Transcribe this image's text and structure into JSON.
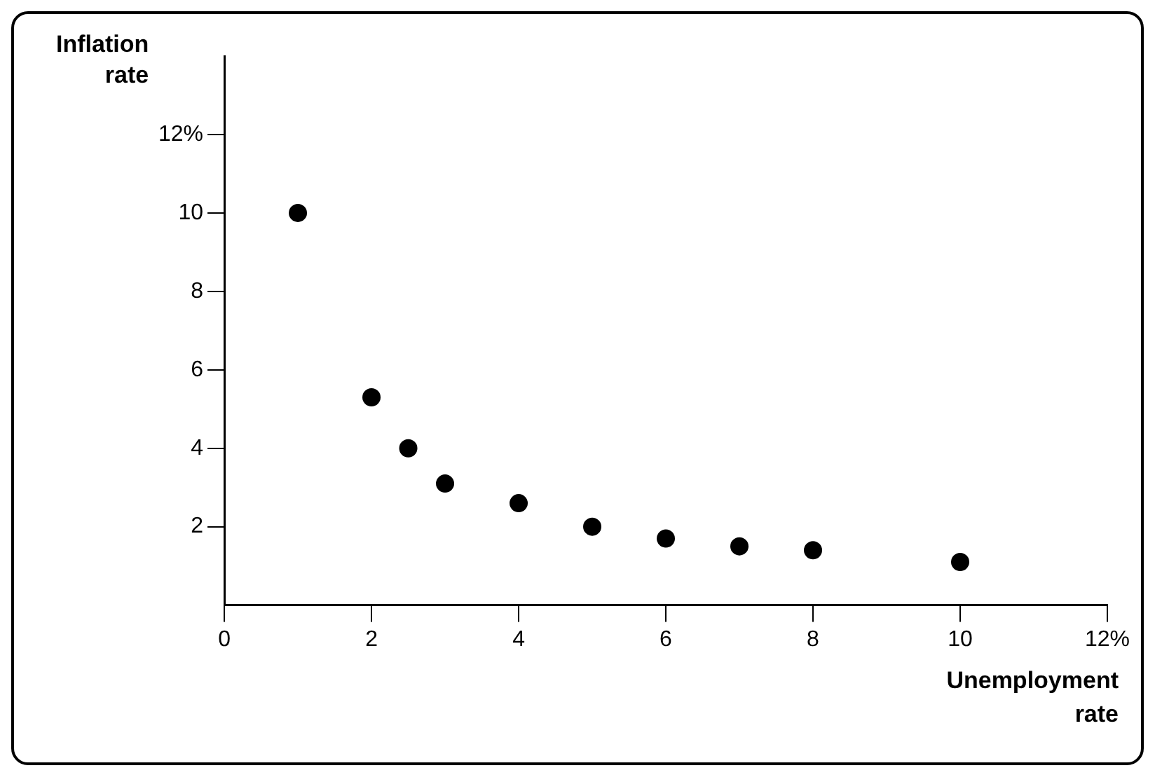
{
  "chart_data": {
    "type": "scatter",
    "xlabel": "Unemployment rate",
    "ylabel": "Inflation rate",
    "x": [
      1,
      2,
      2.5,
      3,
      4,
      5,
      6,
      7,
      8,
      10
    ],
    "values": [
      10,
      5.3,
      4,
      3.1,
      2.6,
      2,
      1.7,
      1.5,
      1.4,
      1.1
    ],
    "color": "#000000",
    "marker": "circle",
    "grid": false,
    "legend": false,
    "xlim": [
      0,
      12
    ],
    "xticks": [
      0,
      2,
      4,
      6,
      8,
      10,
      {
        "value": 12,
        "label": "12%"
      }
    ],
    "ylim": [
      0,
      14
    ],
    "yticks": [
      2,
      4,
      6,
      8,
      10,
      {
        "value": 12,
        "label": "12%"
      }
    ]
  }
}
